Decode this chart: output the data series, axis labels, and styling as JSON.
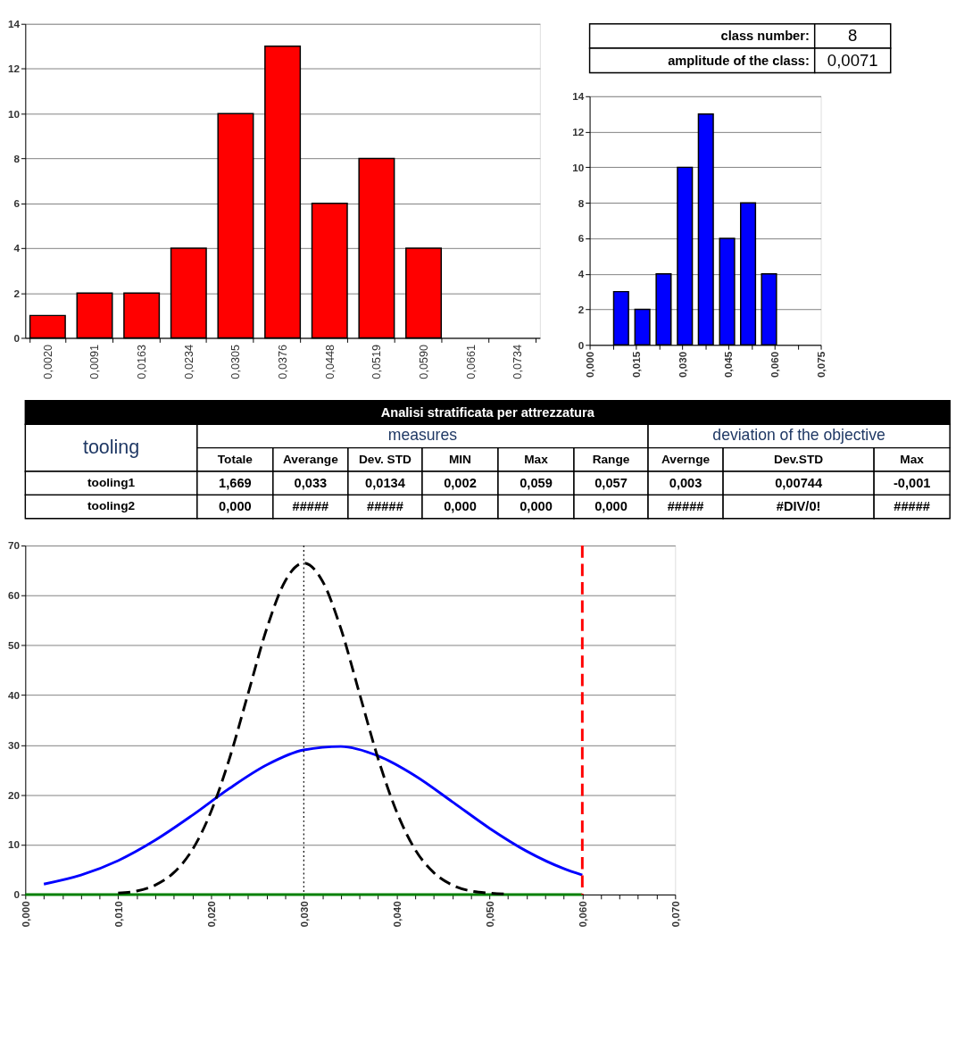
{
  "chart_data": [
    {
      "type": "bar",
      "categories": [
        "0,0020",
        "0,0091",
        "0,0163",
        "0,0234",
        "0,0305",
        "0,0376",
        "0,0448",
        "0,0519",
        "0,0590",
        "0,0661",
        "0,0734"
      ],
      "values": [
        1,
        2,
        2,
        4,
        10,
        13,
        6,
        8,
        4,
        null,
        null
      ],
      "color": "#ff0000",
      "ylim": [
        0,
        14
      ],
      "yticks": [
        0,
        2,
        4,
        6,
        8,
        10,
        12,
        14
      ],
      "grid": "y"
    },
    {
      "type": "other",
      "annotations": [
        "class number:",
        "8",
        "amplitude of the class:",
        "0,0071"
      ]
    },
    {
      "type": "bar",
      "x": [
        0.0102,
        0.0171,
        0.024,
        0.0309,
        0.0377,
        0.0446,
        0.0514,
        0.0582
      ],
      "values": [
        3,
        2,
        4,
        10,
        13,
        6,
        8,
        4
      ],
      "color": "#0000ff",
      "xlim": [
        0,
        0.075
      ],
      "xticks": [
        {
          "value": 0,
          "label": "0,000"
        },
        {
          "value": 0.0075,
          "label": null
        },
        {
          "value": 0.015,
          "label": "0,015"
        },
        {
          "value": 0.0225,
          "label": null
        },
        {
          "value": 0.03,
          "label": "0,030"
        },
        {
          "value": 0.0375,
          "label": null
        },
        {
          "value": 0.045,
          "label": "0,045"
        },
        {
          "value": 0.0525,
          "label": null
        },
        {
          "value": 0.06,
          "label": "0,060"
        },
        {
          "value": 0.0675,
          "label": null
        },
        {
          "value": 0.075,
          "label": "0,075"
        }
      ],
      "ylim": [
        0,
        14
      ],
      "yticks": [
        0,
        2,
        4,
        6,
        8,
        10,
        12,
        14
      ],
      "grid": "y"
    },
    {
      "type": "other",
      "title": "Analisi stratificata per attrezzatura",
      "annotations": [
        "tooling",
        "measures",
        "deviation of the objective",
        "Totale",
        "Averange",
        "Dev. STD",
        "MIN",
        "Max",
        "Range",
        "Avernge",
        "Dev.STD",
        "Max",
        "tooling1",
        "1,669",
        "0,033",
        "0,0134",
        "0,002",
        "0,059",
        "0,057",
        "0,003",
        "0,00744",
        "-0,001",
        "tooling2",
        "0,000",
        "#####",
        "#####",
        "0,000",
        "0,000",
        "0,000",
        "#####",
        "#DIV/0!",
        "#####"
      ]
    },
    {
      "type": "line",
      "xlim": [
        0,
        0.07
      ],
      "ylim": [
        0,
        70
      ],
      "yticks": [
        0,
        10,
        20,
        30,
        40,
        50,
        60,
        70
      ],
      "grid": "y",
      "xticks": [
        {
          "value": 0,
          "label": "0,000"
        },
        {
          "value": 0.002,
          "label": null
        },
        {
          "value": 0.004,
          "label": null
        },
        {
          "value": 0.006,
          "label": null
        },
        {
          "value": 0.008,
          "label": null
        },
        {
          "value": 0.01,
          "label": "0,010"
        },
        {
          "value": 0.012,
          "label": null
        },
        {
          "value": 0.014,
          "label": null
        },
        {
          "value": 0.016,
          "label": null
        },
        {
          "value": 0.018,
          "label": null
        },
        {
          "value": 0.02,
          "label": "0,020"
        },
        {
          "value": 0.022,
          "label": null
        },
        {
          "value": 0.024,
          "label": null
        },
        {
          "value": 0.026,
          "label": null
        },
        {
          "value": 0.028,
          "label": null
        },
        {
          "value": 0.03,
          "label": "0,030"
        },
        {
          "value": 0.032,
          "label": null
        },
        {
          "value": 0.034,
          "label": null
        },
        {
          "value": 0.036,
          "label": null
        },
        {
          "value": 0.038,
          "label": null
        },
        {
          "value": 0.04,
          "label": "0,040"
        },
        {
          "value": 0.042,
          "label": null
        },
        {
          "value": 0.044,
          "label": null
        },
        {
          "value": 0.046,
          "label": null
        },
        {
          "value": 0.048,
          "label": null
        },
        {
          "value": 0.05,
          "label": "0,050"
        },
        {
          "value": 0.052,
          "label": null
        },
        {
          "value": 0.054,
          "label": null
        },
        {
          "value": 0.056,
          "label": null
        },
        {
          "value": 0.058,
          "label": null
        },
        {
          "value": 0.06,
          "label": "0,060"
        },
        {
          "value": 0.062,
          "label": null
        },
        {
          "value": 0.064,
          "label": null
        },
        {
          "value": 0.066,
          "label": null
        },
        {
          "value": 0.068,
          "label": null
        },
        {
          "value": 0.07,
          "label": "0,070"
        }
      ],
      "series": [
        {
          "color": "#008000",
          "line_style": "solid",
          "x": [
            0,
            0.06
          ],
          "values": [
            0,
            0
          ]
        },
        {
          "color": "#0000ff",
          "line_style": "solid",
          "x": [
            0.002,
            0.006,
            0.01,
            0.014,
            0.018,
            0.022,
            0.026,
            0.03,
            0.034,
            0.038,
            0.042,
            0.046,
            0.05,
            0.054,
            0.058,
            0.06
          ],
          "values": [
            2.1,
            3.9,
            6.8,
            10.9,
            15.9,
            21.3,
            26.0,
            29.0,
            29.7,
            27.8,
            23.8,
            18.6,
            13.3,
            8.7,
            5.2,
            3.9
          ]
        },
        {
          "color": "#000000",
          "line_style": "dashed",
          "x": [
            0.01,
            0.012,
            0.014,
            0.016,
            0.018,
            0.02,
            0.022,
            0.024,
            0.026,
            0.028,
            0.03,
            0.032,
            0.034,
            0.036,
            0.038,
            0.04,
            0.042,
            0.044,
            0.046,
            0.048,
            0.05,
            0.052
          ],
          "values": [
            0.3,
            0.7,
            1.9,
            4.4,
            9.0,
            16.6,
            27.3,
            40.3,
            53.3,
            62.9,
            66.5,
            62.9,
            53.3,
            40.3,
            27.3,
            16.6,
            9.0,
            4.4,
            1.9,
            0.7,
            0.3,
            0.1
          ]
        }
      ],
      "ref_lines": [
        {
          "axis": "x",
          "value": 0.03,
          "color": "#000000",
          "line_style": "dotted"
        },
        {
          "axis": "x",
          "value": 0.06,
          "color": "#ff0000",
          "line_style": "dashed"
        }
      ]
    }
  ]
}
